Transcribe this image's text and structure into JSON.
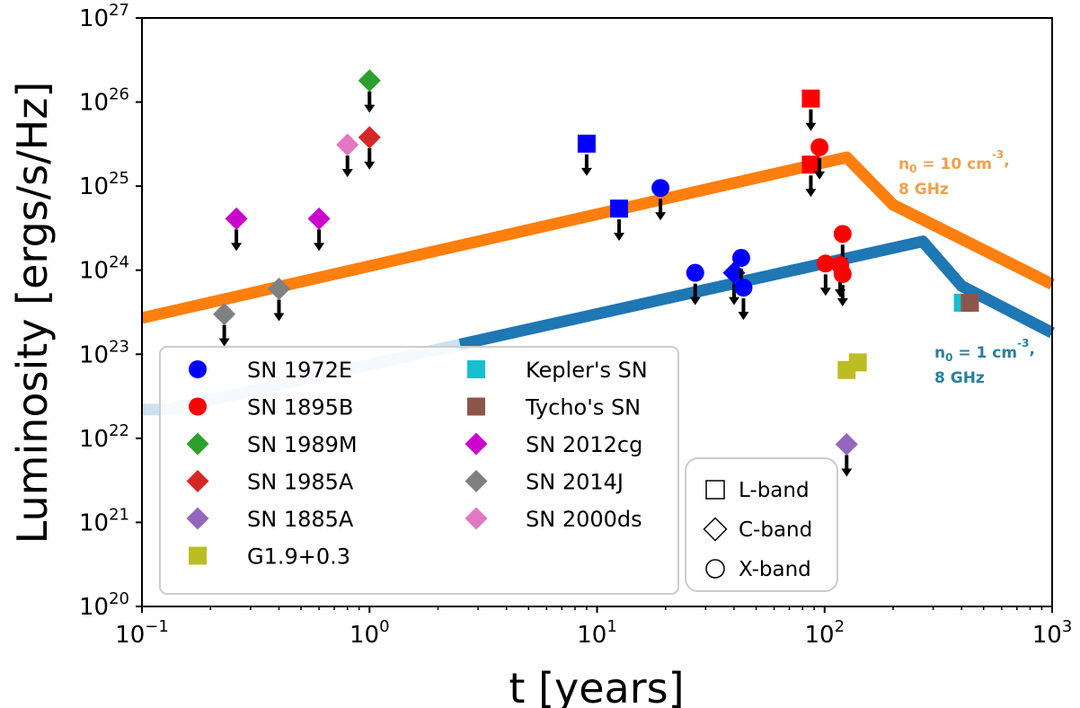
{
  "chart_data": {
    "type": "scatter",
    "title": "",
    "xlabel": "t [years]",
    "ylabel": "Luminosity [ergs/s/Hz]",
    "xscale": "log",
    "yscale": "log",
    "xlim": [
      0.1,
      1000
    ],
    "ylim": [
      1e+20,
      1e+27
    ],
    "x_ticks": [
      {
        "value": 0.1,
        "base": "10",
        "exp": "−1"
      },
      {
        "value": 1,
        "base": "10",
        "exp": "0"
      },
      {
        "value": 10,
        "base": "10",
        "exp": "1"
      },
      {
        "value": 100,
        "base": "10",
        "exp": "2"
      },
      {
        "value": 1000,
        "base": "10",
        "exp": "3"
      }
    ],
    "y_ticks": [
      {
        "value": 1e+20,
        "base": "10",
        "exp": "20"
      },
      {
        "value": 1e+21,
        "base": "10",
        "exp": "21"
      },
      {
        "value": 1e+22,
        "base": "10",
        "exp": "22"
      },
      {
        "value": 1e+23,
        "base": "10",
        "exp": "23"
      },
      {
        "value": 1e+24,
        "base": "10",
        "exp": "24"
      },
      {
        "value": 1e+25,
        "base": "10",
        "exp": "25"
      },
      {
        "value": 1e+26,
        "base": "10",
        "exp": "26"
      },
      {
        "value": 1e+27,
        "base": "10",
        "exp": "27"
      }
    ],
    "grid": false,
    "legend_position": "bottom-left",
    "curves": [
      {
        "id": "orange",
        "color": "#ff7f0e",
        "label_line1": "n",
        "label_sub": "0",
        "label_mid": " = 10 cm",
        "label_sup": "-3",
        "label_end": ",",
        "label_line2": "8 GHz",
        "points": [
          [
            0.1,
            2.7e+23
          ],
          [
            125,
            2.2e+25
          ],
          [
            200,
            6e+24
          ],
          [
            1000,
            6.8e+23
          ]
        ]
      },
      {
        "id": "blue",
        "color": "#1f77b4",
        "faded_until": 2.5,
        "label_line1": "n",
        "label_sub": "0",
        "label_mid": " = 1 cm",
        "label_sup": "-3",
        "label_end": ",",
        "label_line2": "8 GHz",
        "points": [
          [
            0.1,
            2.2e+22
          ],
          [
            0.13,
            2.2e+22
          ],
          [
            270,
            2.2e+24
          ],
          [
            400,
            6.5e+23
          ],
          [
            1000,
            1.8e+23
          ]
        ]
      }
    ],
    "series": [
      {
        "name": "SN 1972E",
        "color": "#0000ff",
        "marker": "circle",
        "points": [
          {
            "x": 19,
            "y": 9.5e+24,
            "shape": "circle",
            "upper_limit": true
          },
          {
            "x": 27,
            "y": 9.3e+23,
            "shape": "circle",
            "upper_limit": true
          },
          {
            "x": 40,
            "y": 9.3e+23,
            "shape": "diamond",
            "upper_limit": true
          },
          {
            "x": 43,
            "y": 1.4e+24,
            "shape": "circle",
            "upper_limit": true
          },
          {
            "x": 44,
            "y": 6.2e+23,
            "shape": "circle",
            "upper_limit": true
          },
          {
            "x": 9,
            "y": 3.2e+25,
            "shape": "square",
            "upper_limit": true
          },
          {
            "x": 12.5,
            "y": 5.4e+24,
            "shape": "square",
            "upper_limit": true
          }
        ]
      },
      {
        "name": "SN 1895B",
        "color": "#ff0000",
        "marker": "circle",
        "points": [
          {
            "x": 87,
            "y": 1.1e+26,
            "shape": "square",
            "upper_limit": true
          },
          {
            "x": 87,
            "y": 1.8e+25,
            "shape": "square",
            "upper_limit": true
          },
          {
            "x": 95,
            "y": 2.9e+25,
            "shape": "circle",
            "upper_limit": true
          },
          {
            "x": 120,
            "y": 2.7e+24,
            "shape": "circle",
            "upper_limit": true
          },
          {
            "x": 101,
            "y": 1.2e+24,
            "shape": "circle",
            "upper_limit": true
          },
          {
            "x": 117,
            "y": 1.15e+24,
            "shape": "circle",
            "upper_limit": true
          },
          {
            "x": 120,
            "y": 9e+23,
            "shape": "circle",
            "upper_limit": true
          }
        ]
      },
      {
        "name": "SN 1989M",
        "color": "#2ca02c",
        "marker": "diamond",
        "points": [
          {
            "x": 1.0,
            "y": 1.8e+26,
            "shape": "diamond",
            "upper_limit": true
          }
        ]
      },
      {
        "name": "SN 1985A",
        "color": "#d62728",
        "marker": "diamond",
        "points": [
          {
            "x": 1.0,
            "y": 3.8e+25,
            "shape": "diamond",
            "upper_limit": true
          }
        ]
      },
      {
        "name": "SN 1885A",
        "color": "#9467bd",
        "marker": "diamond",
        "points": [
          {
            "x": 125,
            "y": 8.5e+21,
            "shape": "diamond",
            "upper_limit": true
          }
        ]
      },
      {
        "name": "G1.9+0.3",
        "color": "#bcbd22",
        "marker": "square",
        "points": [
          {
            "x": 125,
            "y": 6.5e+22,
            "shape": "square",
            "upper_limit": false
          },
          {
            "x": 140,
            "y": 8e+22,
            "shape": "square",
            "upper_limit": false
          }
        ]
      },
      {
        "name": "Kepler's SN",
        "color": "#17becf",
        "marker": "square",
        "points": [
          {
            "x": 405,
            "y": 4.1e+23,
            "shape": "square",
            "upper_limit": false
          }
        ]
      },
      {
        "name": "Tycho's SN",
        "color": "#8c564b",
        "marker": "square",
        "points": [
          {
            "x": 435,
            "y": 4.1e+23,
            "shape": "square",
            "upper_limit": false
          }
        ]
      },
      {
        "name": "SN 2012cg",
        "color": "#cc00cc",
        "marker": "diamond",
        "points": [
          {
            "x": 0.26,
            "y": 4.1e+24,
            "shape": "diamond",
            "upper_limit": true
          },
          {
            "x": 0.6,
            "y": 4.1e+24,
            "shape": "diamond",
            "upper_limit": true
          }
        ]
      },
      {
        "name": "SN 2014J",
        "color": "#808080",
        "marker": "diamond",
        "points": [
          {
            "x": 0.23,
            "y": 3e+23,
            "shape": "diamond",
            "upper_limit": true
          },
          {
            "x": 0.4,
            "y": 6e+23,
            "shape": "diamond",
            "upper_limit": true
          }
        ]
      },
      {
        "name": "SN 2000ds",
        "color": "#e377c2",
        "marker": "diamond",
        "points": [
          {
            "x": 0.8,
            "y": 3.1e+25,
            "shape": "diamond",
            "upper_limit": true
          }
        ]
      }
    ],
    "band_legend": [
      {
        "shape": "square",
        "label": "L-band"
      },
      {
        "shape": "diamond",
        "label": "C-band"
      },
      {
        "shape": "circle",
        "label": "X-band"
      }
    ]
  }
}
